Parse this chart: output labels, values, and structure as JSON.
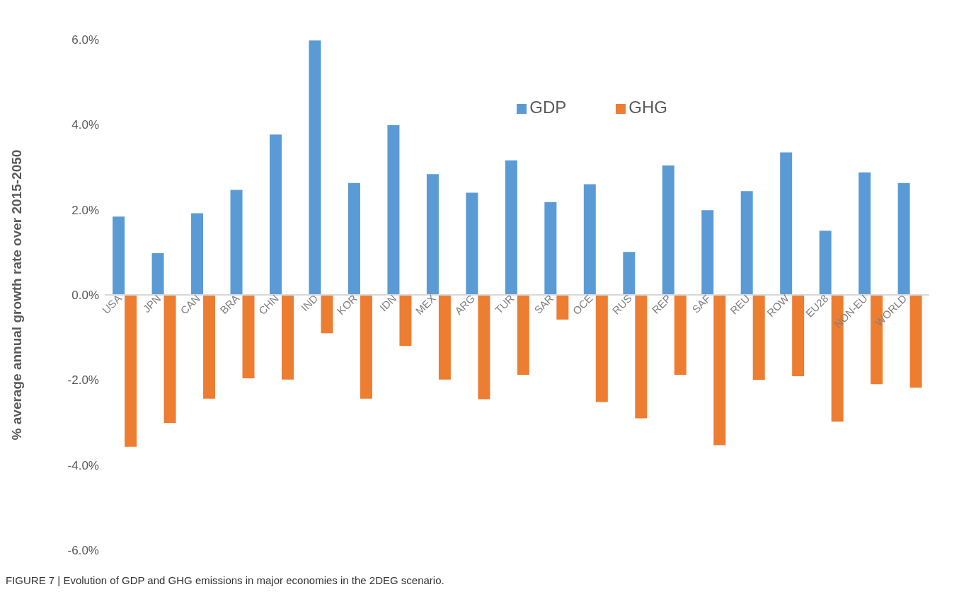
{
  "chart_data": {
    "type": "bar",
    "ylabel": "% average annual growth rate over 2015-2050",
    "annotations": [
      "FIGURE 7 | Evolution of GDP and GHG emissions in major economies in the 2DEG scenario."
    ],
    "categories": [
      "USA",
      "JPN",
      "CAN",
      "BRA",
      "CHN",
      "IND",
      "KOR",
      "IDN",
      "MEX",
      "ARG",
      "TUR",
      "SAR",
      "OCE",
      "RUS",
      "REP",
      "SAF",
      "REU",
      "ROW",
      "EU28",
      "NON-EU",
      "WORLD"
    ],
    "series": [
      {
        "name": "GDP",
        "color": "#5b9bd5",
        "values": [
          1.84,
          0.98,
          1.92,
          2.47,
          3.77,
          5.98,
          2.63,
          3.99,
          2.84,
          2.4,
          3.16,
          2.18,
          2.6,
          1.01,
          3.04,
          1.99,
          2.44,
          3.35,
          1.51,
          2.88,
          2.63
        ]
      },
      {
        "name": "GHG",
        "color": "#ed7d31",
        "values": [
          -3.57,
          -3.01,
          -2.44,
          -1.96,
          -1.99,
          -0.9,
          -2.44,
          -1.2,
          -1.99,
          -2.45,
          -1.88,
          -0.58,
          -2.52,
          -2.9,
          -1.88,
          -3.53,
          -2.0,
          -1.91,
          -2.98,
          -2.1,
          -2.18
        ]
      }
    ],
    "ylim": [
      -6,
      6
    ],
    "yticks": [
      {
        "value": -6,
        "label": "-6.0%"
      },
      {
        "value": -4,
        "label": "-4.0%"
      },
      {
        "value": -2,
        "label": "-2.0%"
      },
      {
        "value": 0,
        "label": "0.0%"
      },
      {
        "value": 2,
        "label": "2.0%"
      },
      {
        "value": 4,
        "label": "4.0%"
      },
      {
        "value": 6,
        "label": "6.0%"
      }
    ],
    "legend": "top right",
    "grid": false
  }
}
